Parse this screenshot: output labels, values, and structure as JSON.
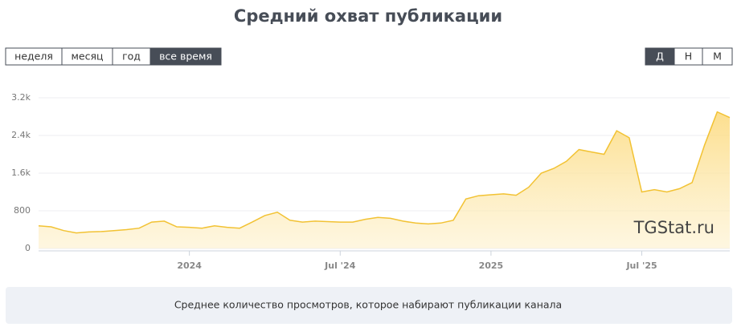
{
  "header": {
    "title": "Средний охват публикации"
  },
  "controls": {
    "periods": [
      "неделя",
      "месяц",
      "год",
      "все время"
    ],
    "selected_period": "все время",
    "granularity": [
      "Д",
      "Н",
      "М"
    ],
    "selected_granularity": "Д"
  },
  "chart_data": {
    "type": "area",
    "categories": [
      null,
      null,
      null,
      null,
      null,
      null,
      null,
      null,
      null,
      null,
      null,
      null,
      "2024",
      null,
      null,
      null,
      null,
      null,
      null,
      null,
      null,
      null,
      null,
      null,
      "Jul '24",
      null,
      null,
      null,
      null,
      null,
      null,
      null,
      null,
      null,
      null,
      null,
      "2025",
      null,
      null,
      null,
      null,
      null,
      null,
      null,
      null,
      null,
      null,
      null,
      "Jul '25",
      null,
      null,
      null,
      null,
      null,
      null,
      null
    ],
    "series": [
      {
        "name": "Средний охват",
        "color": "#f2c233",
        "values": [
          480,
          460,
          380,
          330,
          350,
          360,
          380,
          400,
          430,
          560,
          580,
          460,
          450,
          430,
          480,
          450,
          430,
          560,
          700,
          770,
          600,
          560,
          580,
          570,
          560,
          560,
          620,
          660,
          640,
          580,
          540,
          520,
          540,
          600,
          1050,
          1120,
          1140,
          1160,
          1130,
          1300,
          1600,
          1700,
          1850,
          2100,
          2050,
          2000,
          2500,
          2350,
          1200,
          1250,
          1200,
          1270,
          1400,
          2200,
          2900,
          2780
        ]
      }
    ],
    "ylim": [
      0,
      3200
    ],
    "yticks": [
      0,
      800,
      {
        "value": 1600,
        "label": "1.6k"
      },
      {
        "value": 2400,
        "label": "2.4k"
      },
      {
        "value": 3200,
        "label": "3.2k"
      }
    ],
    "grid": true,
    "watermark": "TGStat.ru"
  },
  "footer": {
    "text": "Среднее количество просмотров, которое набирают публикации канала"
  }
}
